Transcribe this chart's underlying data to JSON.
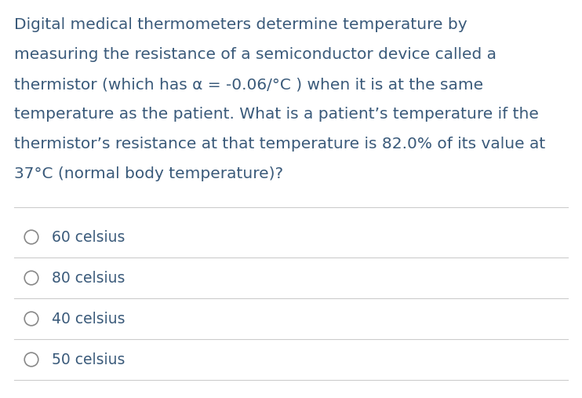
{
  "background_color": "#ffffff",
  "text_color": "#3a5a7a",
  "question_text_lines": [
    "Digital medical thermometers determine temperature by",
    "measuring the resistance of a semiconductor device called a",
    "thermistor (which has α = -0.06/°C ) when it is at the same",
    "temperature as the patient. What is a patient’s temperature if the",
    "thermistor’s resistance at that temperature is 82.0% of its value at",
    "37°C (normal body temperature)?"
  ],
  "choices": [
    "60 celsius",
    "80 celsius",
    "40 celsius",
    "50 celsius"
  ],
  "font_size_question": 14.5,
  "font_size_choices": 13.5,
  "line_color": "#cccccc",
  "circle_color": "#888888",
  "fig_width": 7.42,
  "fig_height": 5.07,
  "dpi": 100
}
